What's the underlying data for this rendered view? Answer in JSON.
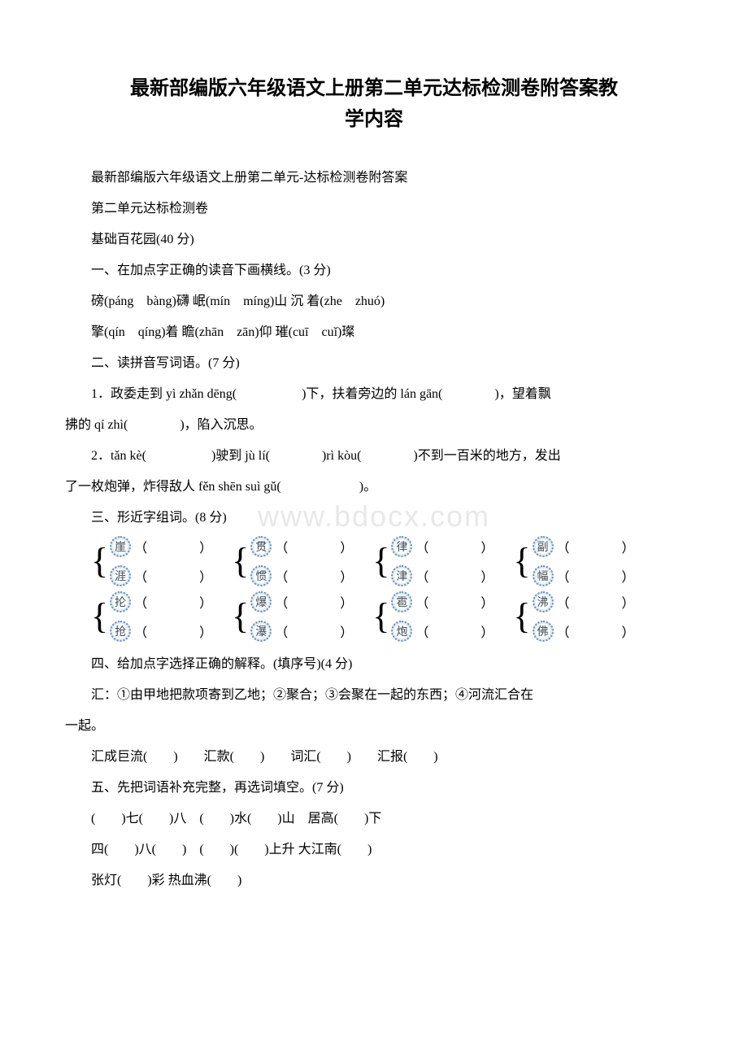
{
  "title_line1": "最新部编版六年级语文上册第二单元达标检测卷附答案教",
  "title_line2": "学内容",
  "p1": "最新部编版六年级语文上册第二单元-达标检测卷附答案",
  "p2": "第二单元达标检测卷",
  "p3": "基础百花园(40 分)",
  "p4": "一、在加点字正确的读音下画横线。(3 分)",
  "p5": "磅(páng　bàng)礴 岷(mín　míng)山 沉 着(zhe　zhuó)",
  "p6": "擎(qín　qíng)着 瞻(zhān　zān)仰 璀(cuī　cuǐ)璨",
  "p7": "二、读拼音写词语。(7 分)",
  "p8a": "1．政委走到 yì zhǎn dēng(　　　　　)下，扶着旁边的 lán gān(　　　　)，望着飘",
  "p8b": "拂的 qí zhì(　　　　)，陷入沉思。",
  "p9a": "2．tǎn kè(　　　　　)驶到 jù lí(　　　　)rì kòu(　　　　)不到一百米的地方，发出",
  "p9b": "了一枚炮弹，炸得敌人 fěn shēn suì gǔ(　　　　　　)。",
  "p10": "三、形近字组词。(8 分)",
  "groups_row1": [
    {
      "top": "崖",
      "bottom": "涯"
    },
    {
      "top": "贯",
      "bottom": "惯"
    },
    {
      "top": "律",
      "bottom": "津"
    },
    {
      "top": "副",
      "bottom": "幅"
    }
  ],
  "groups_row2": [
    {
      "top": "抡",
      "bottom": "抢"
    },
    {
      "top": "爆",
      "bottom": "瀑"
    },
    {
      "top": "雹",
      "bottom": "炮"
    },
    {
      "top": "沸",
      "bottom": "佛"
    }
  ],
  "p11": "四、给加点字选择正确的解释。(填序号)(4 分)",
  "p12a": "汇：①由甲地把款项寄到乙地；②聚合；③会聚在一起的东西；④河流汇合在",
  "p12b": "一起。",
  "p13": "汇成巨流(　　)　　汇款(　　)　　词汇(　　)　　汇报(　　)",
  "p14": "五、先把词语补充完整，再选词填空。(7 分)",
  "p15": "(　　)七(　　)八　(　　)水(　　)山　居高(　　)下",
  "p16": "四(　　)八(　　)　(　　)(　　)上升 大江南(　　)",
  "p17": "张灯(　　)彩 热血沸(　　)",
  "watermark": "www.bdocx.com",
  "blank_paren": "（　　　　）"
}
